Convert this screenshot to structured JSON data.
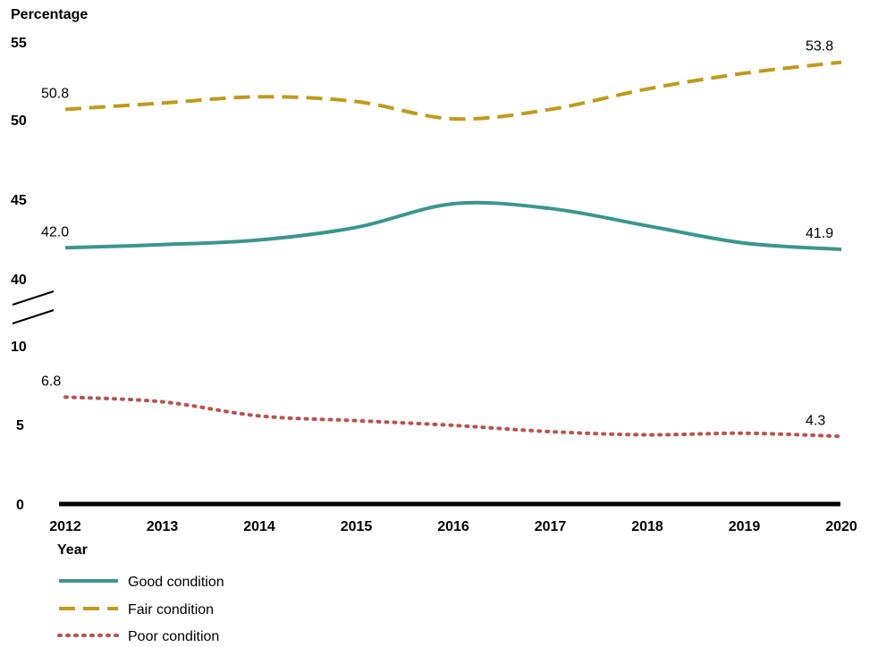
{
  "chart_data": {
    "type": "line",
    "ylabel": "Percentage",
    "xlabel": "Year",
    "x": [
      "2012",
      "2013",
      "2014",
      "2015",
      "2016",
      "2017",
      "2018",
      "2019",
      "2020"
    ],
    "yticks": [
      "55",
      "50",
      "45",
      "40",
      "10",
      "5",
      "0"
    ],
    "y_axis_break": [
      10,
      40
    ],
    "ylim": [
      0,
      55
    ],
    "grid": false,
    "legend_position": "bottom-left",
    "series": [
      {
        "name": "Good condition",
        "color": "#3a968e",
        "style": "solid",
        "values": [
          42.0,
          42.2,
          42.5,
          43.3,
          44.8,
          44.5,
          43.4,
          42.3,
          41.9
        ],
        "labels": [
          "42.0",
          "41.9"
        ]
      },
      {
        "name": "Fair condition",
        "color": "#c09a1a",
        "style": "dashed",
        "values": [
          50.8,
          51.2,
          51.6,
          51.3,
          50.2,
          50.8,
          52.1,
          53.1,
          53.8
        ],
        "labels": [
          "50.8",
          "53.8"
        ]
      },
      {
        "name": "Poor condition",
        "color": "#b9534f",
        "style": "dotted",
        "values": [
          6.8,
          6.5,
          5.6,
          5.3,
          5.0,
          4.6,
          4.4,
          4.5,
          4.3
        ],
        "labels": [
          "6.8",
          "4.3"
        ]
      }
    ]
  }
}
